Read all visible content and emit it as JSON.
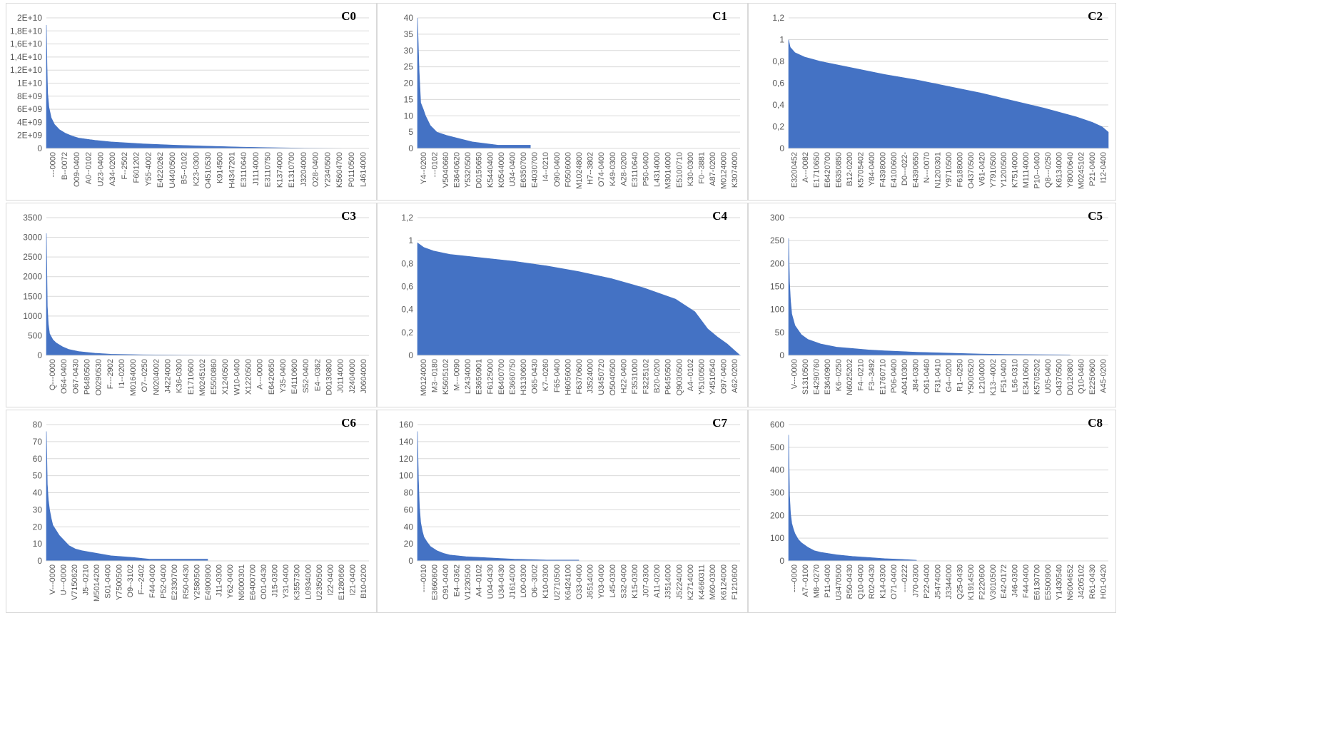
{
  "colors": {
    "bar": "#4472C4",
    "grid": "#d9d9d9",
    "text": "#595959",
    "border": "#d9d9d9"
  },
  "chart_data": [
    {
      "label": "C0",
      "type": "area",
      "yticks": [
        "0",
        "2E+09",
        "4E+09",
        "6E+09",
        "8E+09",
        "1E+10",
        "1,2E+10",
        "1,4E+10",
        "1,6E+10",
        "1,8E+10",
        "2E+10"
      ],
      "ylim": [
        0,
        20000000000
      ],
      "xticks": [
        "---0000",
        "B--0072",
        "O09-0400",
        "A0--0102",
        "U23-0400",
        "A34-0200",
        "F--2502",
        "F601202",
        "Y55-4002",
        "E4220262",
        "U4400500",
        "B5--0102",
        "K23-0300",
        "O4510530",
        "K914500",
        "H4347201",
        "E3110640",
        "J1114000",
        "E3110750",
        "K1374000",
        "E1310700",
        "J3204000",
        "O28-0400",
        "Y2340500",
        "K5604700",
        "P0110500",
        "L4614000"
      ],
      "curve": [
        [
          0,
          18900000000
        ],
        [
          0.002,
          12800000000
        ],
        [
          0.004,
          8500000000
        ],
        [
          0.008,
          6300000000
        ],
        [
          0.015,
          4700000000
        ],
        [
          0.025,
          3700000000
        ],
        [
          0.04,
          2900000000
        ],
        [
          0.06,
          2300000000
        ],
        [
          0.08,
          1900000000
        ],
        [
          0.1,
          1600000000
        ],
        [
          0.15,
          1250000000
        ],
        [
          0.2,
          1000000000
        ],
        [
          0.3,
          700000000
        ],
        [
          0.4,
          500000000
        ],
        [
          0.5,
          350000000
        ],
        [
          0.6,
          220000000
        ],
        [
          0.7,
          120000000
        ],
        [
          0.8,
          50000000
        ],
        [
          1,
          0
        ]
      ],
      "data_end": 1
    },
    {
      "label": "C1",
      "type": "area",
      "yticks": [
        "0",
        "5",
        "10",
        "15",
        "20",
        "25",
        "30",
        "35",
        "40"
      ],
      "ylim": [
        0,
        40
      ],
      "xticks": [
        "Y4--0200",
        "---0102",
        "V5040660",
        "E3640620",
        "Y5320500",
        "D0150650",
        "K5440400",
        "K0544000",
        "U34-0400",
        "E6350700",
        "E4030700",
        "I4--0210",
        "O90-0400",
        "F0506000",
        "M1024800",
        "H7--3802",
        "O74-0400",
        "K49-0300",
        "A28-0200",
        "E3110640",
        "P50-0400",
        "L4314000",
        "M3014000",
        "E5100710",
        "K30-0300",
        "F0--3881",
        "A87-0200",
        "M0124000",
        "K3074000"
      ],
      "curve": [
        [
          0,
          40
        ],
        [
          0.005,
          24
        ],
        [
          0.01,
          14
        ],
        [
          0.018,
          12
        ],
        [
          0.025,
          10
        ],
        [
          0.04,
          7
        ],
        [
          0.06,
          5
        ],
        [
          0.09,
          4
        ],
        [
          0.13,
          3
        ],
        [
          0.17,
          2
        ],
        [
          0.25,
          1
        ],
        [
          0.35,
          1
        ],
        [
          0.35,
          0
        ]
      ],
      "data_end": 0.35
    },
    {
      "label": "C2",
      "type": "area",
      "yticks": [
        "0",
        "0,2",
        "0,4",
        "0,6",
        "0,8",
        "1",
        "1,2"
      ],
      "ylim": [
        0,
        1.2
      ],
      "xticks": [
        "E3200452",
        "A---0082",
        "E1710650",
        "E6420700",
        "E6350850",
        "B12-0200",
        "K5705402",
        "Y84-0400",
        "F4398000",
        "E4100600",
        "D0---022-",
        "E4390650",
        "N---0070",
        "N1200301",
        "Y9710500",
        "F6188000",
        "O4370500",
        "V61-0420",
        "Y7910500",
        "Y1200500",
        "K7514000",
        "M1114000",
        "P10--0400",
        "Q8---0250",
        "K6134000",
        "Y8000640",
        "M0245102",
        "P21-0400",
        "I12-0400"
      ],
      "curve": [
        [
          0,
          1
        ],
        [
          0.005,
          0.93
        ],
        [
          0.02,
          0.88
        ],
        [
          0.05,
          0.84
        ],
        [
          0.1,
          0.8
        ],
        [
          0.2,
          0.74
        ],
        [
          0.3,
          0.68
        ],
        [
          0.4,
          0.63
        ],
        [
          0.5,
          0.57
        ],
        [
          0.6,
          0.51
        ],
        [
          0.7,
          0.44
        ],
        [
          0.8,
          0.37
        ],
        [
          0.9,
          0.29
        ],
        [
          0.95,
          0.24
        ],
        [
          0.98,
          0.2
        ],
        [
          1,
          0.15
        ],
        [
          1,
          0
        ]
      ],
      "data_end": 1
    },
    {
      "label": "C3",
      "type": "area",
      "yticks": [
        "0",
        "500",
        "1000",
        "1500",
        "2000",
        "2500",
        "3000",
        "3500"
      ],
      "ylim": [
        0,
        3500
      ],
      "xticks": [
        "Q---0000",
        "O64-0400",
        "O67-0430",
        "P6480500",
        "O0290530",
        "F---2902",
        "I1--0200",
        "M0164000",
        "O7--0250",
        "N0204002",
        "J4224000",
        "K36-0300",
        "E1710600",
        "M0245102",
        "E5500860",
        "X1240500",
        "W10-0400",
        "X1220500",
        "A---0000",
        "E6420650",
        "Y35-0400",
        "E4110600",
        "S52-0400",
        "E4--0362",
        "D0130800",
        "J0114000",
        "J2404000",
        "J0604000"
      ],
      "curve": [
        [
          0,
          3100
        ],
        [
          0.003,
          1250
        ],
        [
          0.006,
          800
        ],
        [
          0.01,
          550
        ],
        [
          0.02,
          400
        ],
        [
          0.03,
          320
        ],
        [
          0.05,
          220
        ],
        [
          0.07,
          150
        ],
        [
          0.1,
          100
        ],
        [
          0.15,
          55
        ],
        [
          0.2,
          30
        ],
        [
          0.3,
          15
        ],
        [
          0.5,
          5
        ],
        [
          0.6,
          2
        ],
        [
          0.6,
          0
        ]
      ],
      "data_end": 0.6
    },
    {
      "label": "C4",
      "type": "area",
      "yticks": [
        "0",
        "0,2",
        "0,4",
        "0,6",
        "0,8",
        "1",
        "1,2"
      ],
      "ylim": [
        0,
        1.2
      ],
      "xticks": [
        "M0124000",
        "M3--0180",
        "K5605102",
        "M---0090",
        "L2434000",
        "E3650901",
        "F6125000",
        "E6400700",
        "E3660750",
        "H3130600",
        "O65-0430",
        "K7--0260",
        "F65-0400",
        "H6056000",
        "F6370600",
        "J3524000",
        "U3450720",
        "O5040500",
        "H22-0400",
        "F3531000",
        "F3225102",
        "B20-0200",
        "P6450500",
        "Q9030500",
        "A4--0102",
        "Y5100500",
        "Y4510540",
        "O97-0400",
        "A62-0200"
      ],
      "curve": [
        [
          0,
          0.98
        ],
        [
          0.02,
          0.94
        ],
        [
          0.05,
          0.91
        ],
        [
          0.1,
          0.88
        ],
        [
          0.2,
          0.85
        ],
        [
          0.3,
          0.82
        ],
        [
          0.4,
          0.78
        ],
        [
          0.5,
          0.73
        ],
        [
          0.6,
          0.67
        ],
        [
          0.7,
          0.59
        ],
        [
          0.8,
          0.49
        ],
        [
          0.86,
          0.38
        ],
        [
          0.9,
          0.23
        ],
        [
          0.93,
          0.16
        ],
        [
          0.96,
          0.1
        ],
        [
          0.98,
          0.05
        ],
        [
          1,
          0
        ]
      ],
      "data_end": 1
    },
    {
      "label": "C5",
      "type": "area",
      "yticks": [
        "0",
        "50",
        "100",
        "150",
        "200",
        "250",
        "300"
      ],
      "ylim": [
        0,
        300
      ],
      "xticks": [
        "V---0000",
        "S1310500",
        "E4290760",
        "E3640900",
        "K6--0250",
        "N6025202",
        "F4--0210",
        "F3--3492",
        "E1760710",
        "P06-0400",
        "A0410300",
        "J84-0300",
        "O61-0460",
        "F31-0410",
        "G4--0200",
        "R1--0250",
        "Y5000520",
        "L2104000",
        "K13--4002",
        "F51-0400",
        "L56-0310",
        "E3410600",
        "K5705202",
        "U05-0400",
        "O4370500",
        "D0120800",
        "Q10-0460",
        "E2250600",
        "A45-0200"
      ],
      "curve": [
        [
          0,
          255
        ],
        [
          0.003,
          160
        ],
        [
          0.006,
          120
        ],
        [
          0.01,
          90
        ],
        [
          0.02,
          65
        ],
        [
          0.04,
          45
        ],
        [
          0.06,
          35
        ],
        [
          0.1,
          25
        ],
        [
          0.15,
          18
        ],
        [
          0.2,
          15
        ],
        [
          0.25,
          12
        ],
        [
          0.3,
          10
        ],
        [
          0.4,
          7
        ],
        [
          0.5,
          5
        ],
        [
          0.6,
          3
        ],
        [
          0.7,
          2
        ],
        [
          0.88,
          1
        ],
        [
          0.88,
          0
        ]
      ],
      "data_end": 0.88
    },
    {
      "label": "C6",
      "type": "area",
      "yticks": [
        "0",
        "10",
        "20",
        "30",
        "40",
        "50",
        "60",
        "70",
        "80"
      ],
      "ylim": [
        0,
        80
      ],
      "xticks": [
        "V---0000",
        "U---0000",
        "V7150620",
        "J5--0210",
        "M5014200",
        "S01-0400",
        "Y7500500",
        "O9--3102",
        "F---2402",
        "F44-0400",
        "P52-0400",
        "E2330700",
        "R50-0430",
        "Y2580500",
        "E4900900",
        "J11-0300",
        "Y62-0400",
        "N6000301",
        "E6400700",
        "O01-0430",
        "J15-0300",
        "Y31-0400",
        "K3557300",
        "L0934000",
        "U2350500",
        "I22-0400",
        "E1280660",
        "I21-0400",
        "B10-0200"
      ],
      "curve": [
        [
          0,
          76
        ],
        [
          0.003,
          45
        ],
        [
          0.006,
          36
        ],
        [
          0.01,
          30
        ],
        [
          0.015,
          25
        ],
        [
          0.02,
          21
        ],
        [
          0.03,
          18
        ],
        [
          0.04,
          15
        ],
        [
          0.05,
          13
        ],
        [
          0.06,
          11
        ],
        [
          0.07,
          9
        ],
        [
          0.09,
          7
        ],
        [
          0.11,
          6
        ],
        [
          0.14,
          5
        ],
        [
          0.17,
          4
        ],
        [
          0.2,
          3
        ],
        [
          0.27,
          2
        ],
        [
          0.32,
          1
        ],
        [
          0.5,
          1
        ],
        [
          0.5,
          0
        ]
      ],
      "data_end": 0.5
    },
    {
      "label": "C7",
      "type": "area",
      "yticks": [
        "0",
        "20",
        "40",
        "60",
        "80",
        "100",
        "120",
        "140",
        "160"
      ],
      "ylim": [
        0,
        160
      ],
      "xticks": [
        "----0010",
        "E3660600",
        "O91-0400",
        "E4--0362",
        "V1230500",
        "A4--0102",
        "U04-0430",
        "U34-0430",
        "J1614000",
        "L00-0300",
        "O6--3002",
        "K10-0300",
        "U2710500",
        "K6424100",
        "O33-0400",
        "J6514000",
        "Y03-0400",
        "L45-0300",
        "S32-0400",
        "K15-0300",
        "J07-0300",
        "A11-0200",
        "J3514000",
        "J5224000",
        "K2714000",
        "K4660311",
        "M60-0300",
        "K6124000",
        "F1210600"
      ],
      "curve": [
        [
          0,
          152
        ],
        [
          0.003,
          96
        ],
        [
          0.006,
          64
        ],
        [
          0.01,
          45
        ],
        [
          0.015,
          35
        ],
        [
          0.02,
          28
        ],
        [
          0.03,
          22
        ],
        [
          0.04,
          17
        ],
        [
          0.06,
          12
        ],
        [
          0.08,
          9
        ],
        [
          0.1,
          7
        ],
        [
          0.15,
          5
        ],
        [
          0.2,
          4
        ],
        [
          0.3,
          2
        ],
        [
          0.4,
          1
        ],
        [
          0.5,
          1
        ],
        [
          0.5,
          0
        ]
      ],
      "data_end": 0.5
    },
    {
      "label": "C8",
      "type": "area",
      "yticks": [
        "0",
        "100",
        "200",
        "300",
        "400",
        "500",
        "600"
      ],
      "ylim": [
        0,
        600
      ],
      "xticks": [
        "----0000",
        "A7--0100",
        "M8--0270",
        "P11-0400",
        "U3470500",
        "R50-0430",
        "Q10-0400",
        "R02-0430",
        "K14-0300",
        "O71-0400",
        "----0222",
        "J70-0300",
        "P22-0400",
        "J5474000",
        "J3344000",
        "Q25-0430",
        "K1914500",
        "F2220600",
        "V3010500",
        "E42-0172",
        "J46-0300",
        "F44-0400",
        "E6130700",
        "E5500900",
        "Y1430540",
        "N6004652",
        "J4205102",
        "R61-0430",
        "H01-0420"
      ],
      "curve": [
        [
          0,
          555
        ],
        [
          0.003,
          290
        ],
        [
          0.006,
          210
        ],
        [
          0.01,
          165
        ],
        [
          0.015,
          140
        ],
        [
          0.02,
          120
        ],
        [
          0.03,
          95
        ],
        [
          0.04,
          80
        ],
        [
          0.06,
          60
        ],
        [
          0.08,
          45
        ],
        [
          0.1,
          38
        ],
        [
          0.15,
          27
        ],
        [
          0.2,
          20
        ],
        [
          0.25,
          15
        ],
        [
          0.3,
          10
        ],
        [
          0.35,
          7
        ],
        [
          0.4,
          3
        ],
        [
          0.4,
          0
        ]
      ],
      "data_end": 0.4
    }
  ]
}
